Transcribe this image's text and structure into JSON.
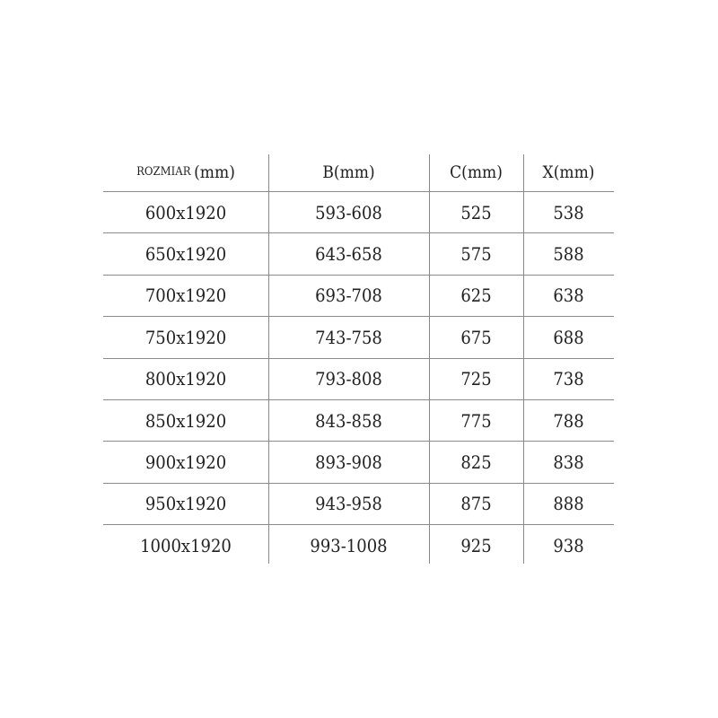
{
  "table": {
    "headers": [
      {
        "prefix": "ROZMIAR",
        "unit": "(mm)"
      },
      {
        "prefix": "B",
        "unit": "(mm)"
      },
      {
        "prefix": "C",
        "unit": "(mm)"
      },
      {
        "prefix": "X",
        "unit": "(mm)"
      }
    ],
    "rows": [
      [
        "600x1920",
        "593-608",
        "525",
        "538"
      ],
      [
        "650x1920",
        "643-658",
        "575",
        "588"
      ],
      [
        "700x1920",
        "693-708",
        "625",
        "638"
      ],
      [
        "750x1920",
        "743-758",
        "675",
        "688"
      ],
      [
        "800x1920",
        "793-808",
        "725",
        "738"
      ],
      [
        "850x1920",
        "843-858",
        "775",
        "788"
      ],
      [
        "900x1920",
        "893-908",
        "825",
        "838"
      ],
      [
        "950x1920",
        "943-958",
        "875",
        "888"
      ],
      [
        "1000x1920",
        "993-1008",
        "925",
        "938"
      ]
    ]
  }
}
